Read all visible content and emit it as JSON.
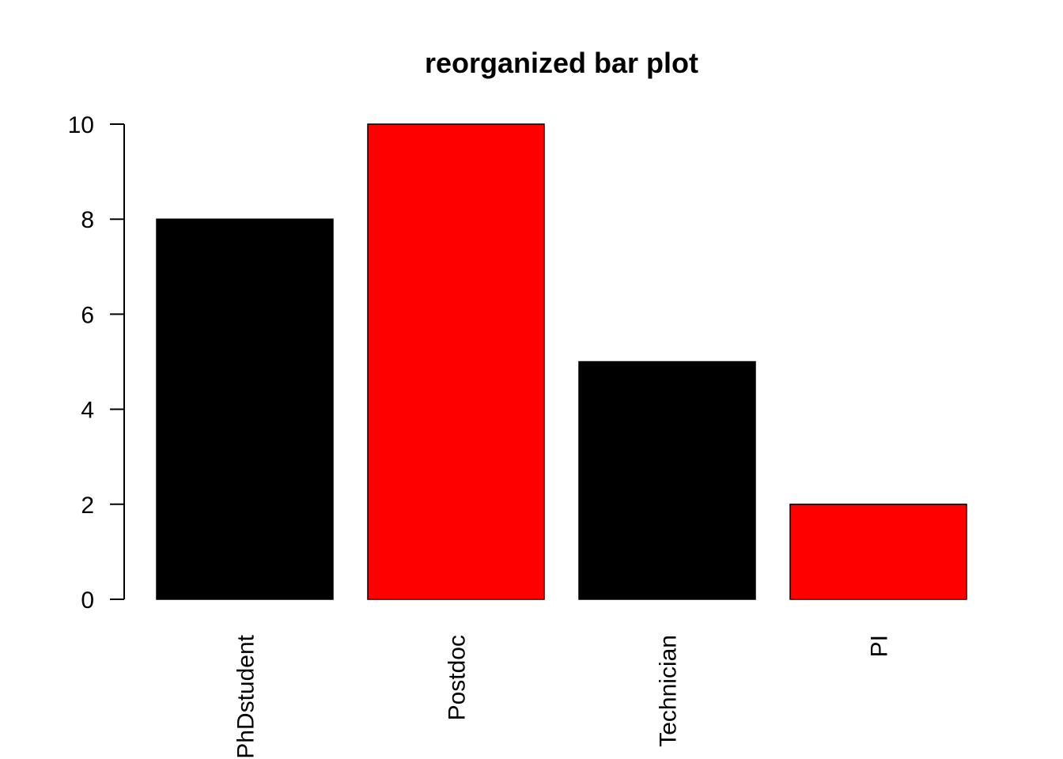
{
  "chart_data": {
    "type": "bar",
    "title": "reorganized bar plot",
    "categories": [
      "PhDstudent",
      "Postdoc",
      "Technician",
      "PI"
    ],
    "values": [
      8,
      10,
      5,
      2
    ],
    "colors": [
      "#000000",
      "#ff0000",
      "#000000",
      "#ff0000"
    ],
    "border_color": "#000000",
    "ylim": [
      0,
      10
    ],
    "yticks": [
      "0",
      "2",
      "4",
      "6",
      "8",
      "10"
    ],
    "xlabel": "",
    "ylabel": "",
    "grid": false,
    "category_label_orientation": "vertical"
  }
}
